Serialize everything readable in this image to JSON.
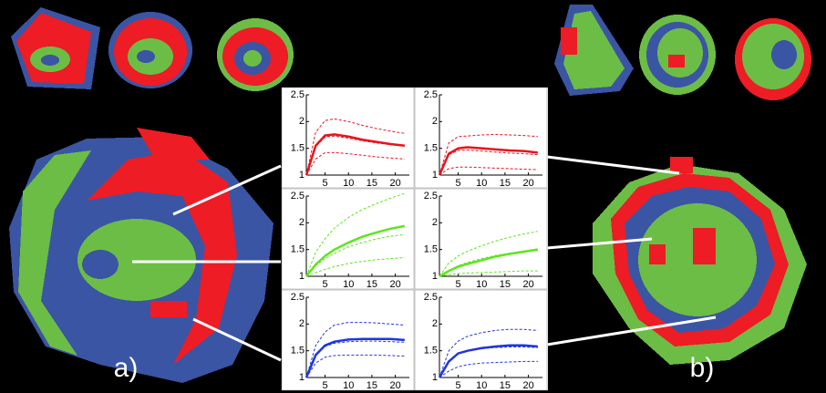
{
  "chart_data": [
    {
      "type": "line",
      "x": [
        1,
        3,
        5,
        7,
        10,
        13,
        16,
        19,
        22
      ],
      "xlim": [
        1,
        23
      ],
      "xticks": [
        5,
        10,
        15,
        20
      ],
      "ylim": [
        1,
        2.5
      ],
      "yticks": [
        1,
        1.5,
        2,
        2.5
      ],
      "series": [
        {
          "color": "#e8141c",
          "dash": true,
          "width": 1,
          "values": [
            1,
            1.8,
            2.02,
            2.05,
            2.0,
            1.93,
            1.87,
            1.82,
            1.78
          ]
        },
        {
          "color": "#e8141c",
          "dash": true,
          "width": 1,
          "values": [
            1,
            1.3,
            1.42,
            1.42,
            1.4,
            1.37,
            1.34,
            1.32,
            1.3
          ]
        },
        {
          "color": "#e8141c",
          "dash": true,
          "width": 1,
          "values": [
            1,
            1.53,
            1.71,
            1.73,
            1.69,
            1.64,
            1.6,
            1.57,
            1.54
          ]
        },
        {
          "color": "#e8141c",
          "dash": false,
          "width": 2.5,
          "values": [
            1,
            1.55,
            1.74,
            1.76,
            1.72,
            1.66,
            1.62,
            1.58,
            1.55
          ]
        }
      ]
    },
    {
      "type": "line",
      "x": [
        1,
        3,
        5,
        7,
        10,
        13,
        16,
        19,
        22
      ],
      "xlim": [
        1,
        23
      ],
      "xticks": [
        5,
        10,
        15,
        20
      ],
      "ylim": [
        1,
        2.5
      ],
      "yticks": [
        1,
        1.5,
        2,
        2.5
      ],
      "series": [
        {
          "color": "#e8141c",
          "dash": true,
          "width": 1,
          "values": [
            1,
            1.6,
            1.72,
            1.73,
            1.75,
            1.76,
            1.75,
            1.74,
            1.72
          ]
        },
        {
          "color": "#e8141c",
          "dash": true,
          "width": 1,
          "values": [
            1,
            1.12,
            1.15,
            1.15,
            1.14,
            1.13,
            1.12,
            1.11,
            1.1
          ]
        },
        {
          "color": "#e8141c",
          "dash": true,
          "width": 1,
          "values": [
            1,
            1.38,
            1.46,
            1.47,
            1.45,
            1.43,
            1.41,
            1.4,
            1.38
          ]
        },
        {
          "color": "#e8141c",
          "dash": false,
          "width": 2.5,
          "values": [
            1,
            1.4,
            1.5,
            1.52,
            1.5,
            1.48,
            1.46,
            1.45,
            1.42
          ]
        }
      ]
    },
    {
      "type": "line",
      "x": [
        1,
        3,
        5,
        7,
        10,
        13,
        16,
        19,
        22
      ],
      "xlim": [
        1,
        23
      ],
      "xticks": [
        5,
        10,
        15,
        20
      ],
      "ylim": [
        1,
        2.5
      ],
      "yticks": [
        1,
        1.5,
        2,
        2.5
      ],
      "series": [
        {
          "color": "#5ce61e",
          "dash": true,
          "width": 1,
          "values": [
            1,
            1.45,
            1.7,
            1.9,
            2.1,
            2.25,
            2.36,
            2.46,
            2.55
          ]
        },
        {
          "color": "#5ce61e",
          "dash": true,
          "width": 1,
          "values": [
            1,
            1.07,
            1.13,
            1.18,
            1.24,
            1.28,
            1.31,
            1.33,
            1.35
          ]
        },
        {
          "color": "#5ce61e",
          "dash": true,
          "width": 1,
          "values": [
            1,
            1.2,
            1.33,
            1.43,
            1.55,
            1.63,
            1.7,
            1.75,
            1.78
          ]
        },
        {
          "color": "#5ce61e",
          "dash": false,
          "width": 2.5,
          "values": [
            1,
            1.22,
            1.38,
            1.5,
            1.63,
            1.74,
            1.82,
            1.89,
            1.94
          ]
        }
      ]
    },
    {
      "type": "line",
      "x": [
        1,
        3,
        5,
        7,
        10,
        13,
        16,
        19,
        22
      ],
      "xlim": [
        1,
        23
      ],
      "xticks": [
        5,
        10,
        15,
        20
      ],
      "ylim": [
        1,
        2.5
      ],
      "yticks": [
        1,
        1.5,
        2,
        2.5
      ],
      "series": [
        {
          "color": "#5ce61e",
          "dash": true,
          "width": 1,
          "values": [
            1,
            1.25,
            1.38,
            1.47,
            1.57,
            1.66,
            1.73,
            1.79,
            1.84
          ]
        },
        {
          "color": "#5ce61e",
          "dash": true,
          "width": 1,
          "values": [
            1,
            1.03,
            1.05,
            1.06,
            1.07,
            1.08,
            1.09,
            1.1,
            1.1
          ]
        },
        {
          "color": "#5ce61e",
          "dash": true,
          "width": 1,
          "values": [
            1,
            1.1,
            1.2,
            1.26,
            1.33,
            1.39,
            1.43,
            1.46,
            1.48
          ]
        },
        {
          "color": "#5ce61e",
          "dash": false,
          "width": 2.5,
          "values": [
            1,
            1.1,
            1.18,
            1.23,
            1.3,
            1.37,
            1.42,
            1.46,
            1.5
          ]
        }
      ]
    },
    {
      "type": "line",
      "x": [
        1,
        3,
        5,
        7,
        10,
        13,
        16,
        19,
        22
      ],
      "xlim": [
        1,
        23
      ],
      "xticks": [
        5,
        10,
        15,
        20
      ],
      "ylim": [
        1,
        2.5
      ],
      "yticks": [
        1,
        1.5,
        2,
        2.5
      ],
      "series": [
        {
          "color": "#1f35e0",
          "dash": true,
          "width": 1,
          "values": [
            1,
            1.6,
            1.85,
            1.98,
            2.03,
            2.03,
            2.02,
            2.0,
            1.98
          ]
        },
        {
          "color": "#1f35e0",
          "dash": true,
          "width": 1,
          "values": [
            1,
            1.27,
            1.38,
            1.41,
            1.42,
            1.42,
            1.42,
            1.41,
            1.4
          ]
        },
        {
          "color": "#1f35e0",
          "dash": true,
          "width": 1,
          "values": [
            1,
            1.42,
            1.58,
            1.64,
            1.67,
            1.68,
            1.68,
            1.67,
            1.66
          ]
        },
        {
          "color": "#1f35e0",
          "dash": false,
          "width": 2.5,
          "values": [
            1,
            1.42,
            1.6,
            1.67,
            1.71,
            1.72,
            1.72,
            1.72,
            1.7
          ]
        }
      ]
    },
    {
      "type": "line",
      "x": [
        1,
        3,
        5,
        7,
        10,
        13,
        16,
        19,
        22
      ],
      "xlim": [
        1,
        23
      ],
      "xticks": [
        5,
        10,
        15,
        20
      ],
      "ylim": [
        1,
        2.5
      ],
      "yticks": [
        1,
        1.5,
        2,
        2.5
      ],
      "series": [
        {
          "color": "#1f35e0",
          "dash": true,
          "width": 1,
          "values": [
            1,
            1.5,
            1.68,
            1.77,
            1.84,
            1.88,
            1.9,
            1.9,
            1.88
          ]
        },
        {
          "color": "#1f35e0",
          "dash": true,
          "width": 1,
          "values": [
            1,
            1.12,
            1.2,
            1.24,
            1.27,
            1.28,
            1.29,
            1.3,
            1.3
          ]
        },
        {
          "color": "#1f35e0",
          "dash": true,
          "width": 1,
          "values": [
            1,
            1.3,
            1.44,
            1.5,
            1.54,
            1.56,
            1.57,
            1.57,
            1.56
          ]
        },
        {
          "color": "#1f35e0",
          "dash": false,
          "width": 2.5,
          "values": [
            1,
            1.3,
            1.45,
            1.5,
            1.55,
            1.58,
            1.6,
            1.6,
            1.58
          ]
        }
      ]
    }
  ],
  "panel_labels": [
    "a)",
    "b)"
  ]
}
